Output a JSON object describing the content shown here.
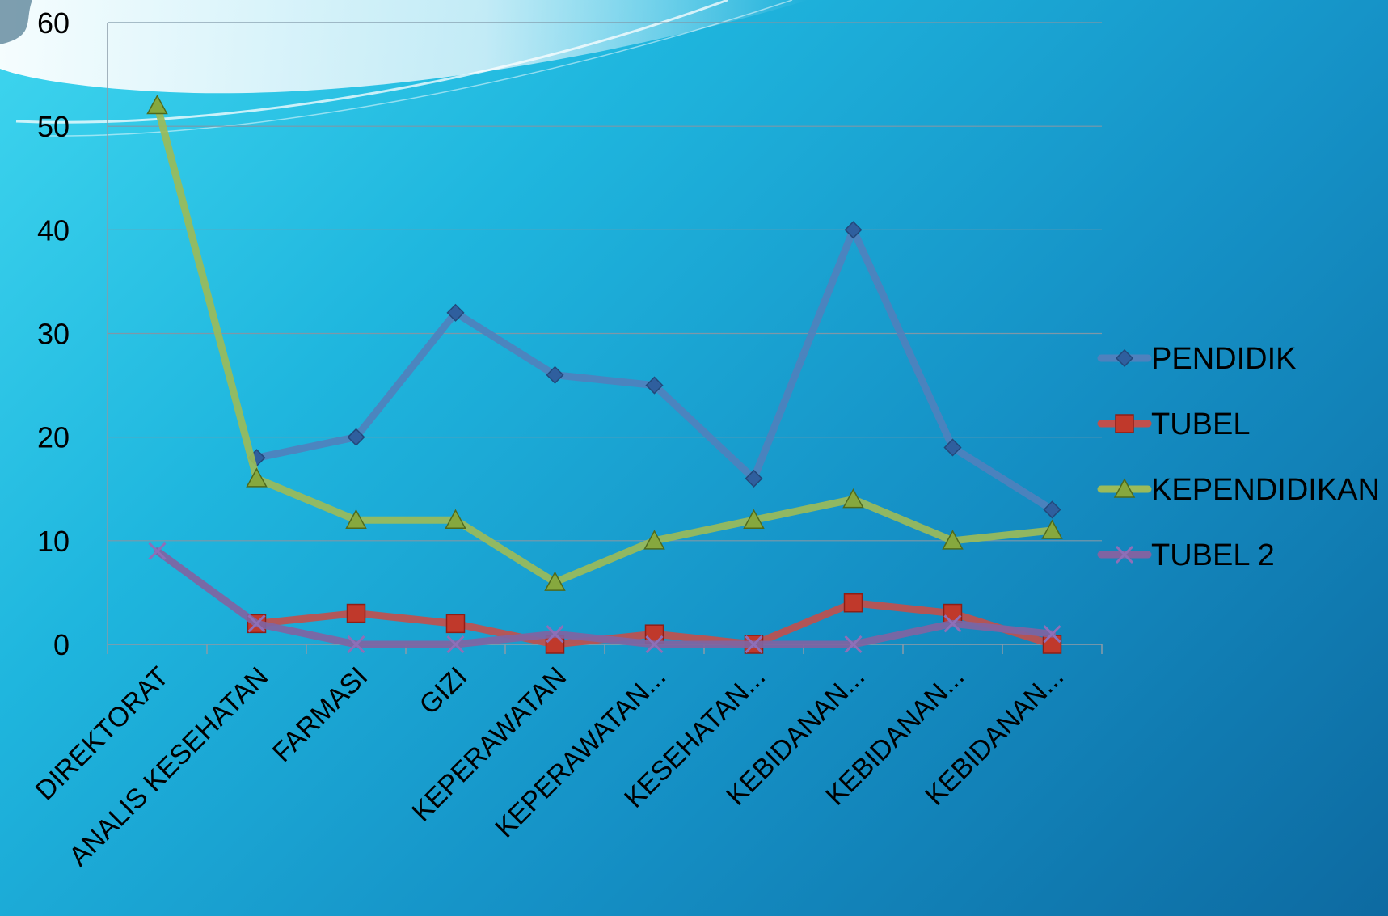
{
  "chart_data": {
    "type": "line",
    "title": "",
    "xlabel": "",
    "ylabel": "",
    "ylim": [
      0,
      60
    ],
    "yticks": [
      "0",
      "10",
      "20",
      "30",
      "40",
      "50",
      "60"
    ],
    "grid": true,
    "legend_position": "right",
    "categories": [
      "DIREKTORAT",
      "ANALIS KESEHATAN",
      "FARMASI",
      "GIZI",
      "KEPERAWATAN",
      "KEPERAWATAN...",
      "KESEHATAN...",
      "KEBIDANAN...",
      "KEBIDANAN...",
      "KEBIDANAN..."
    ],
    "series": [
      {
        "name": "PENDIDIK",
        "color": "#4f81bd",
        "marker": "diamond",
        "values": [
          null,
          18,
          20,
          32,
          26,
          25,
          16,
          40,
          19,
          13
        ]
      },
      {
        "name": "TUBEL",
        "color": "#c0504d",
        "marker": "square",
        "values": [
          null,
          2,
          3,
          2,
          0,
          1,
          0,
          4,
          3,
          0
        ]
      },
      {
        "name": "KEPENDIDIKAN",
        "color": "#9bbb59",
        "marker": "triangle",
        "values": [
          52,
          16,
          12,
          12,
          6,
          10,
          12,
          14,
          10,
          11
        ]
      },
      {
        "name": "TUBEL 2",
        "color": "#8064a2",
        "marker": "x",
        "values": [
          9,
          2,
          0,
          0,
          1,
          0,
          0,
          0,
          2,
          1
        ]
      }
    ]
  }
}
